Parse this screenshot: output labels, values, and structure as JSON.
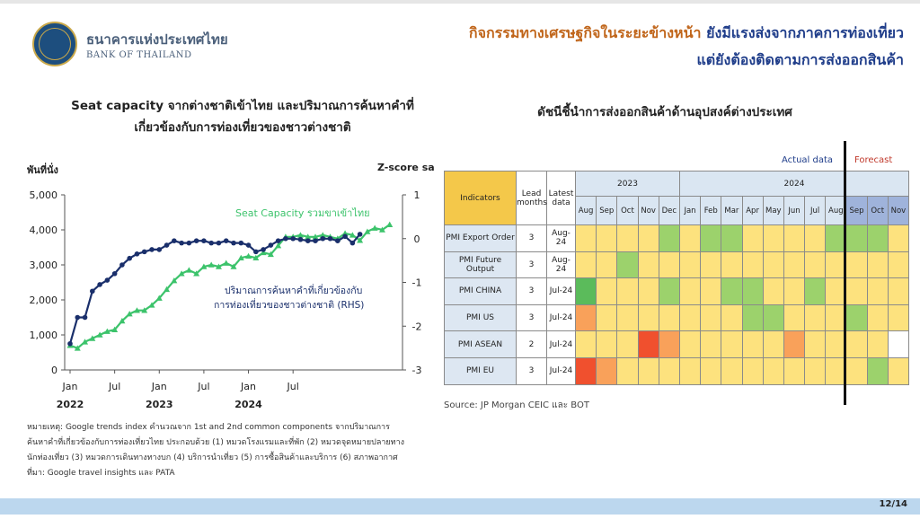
{
  "header": {
    "bank_th": "ธนาคารแห่งประเทศไทย",
    "bank_en": "BANK OF THAILAND",
    "headline_part1": "กิจกรรมทางเศรษฐกิจในระยะข้างหน้า",
    "headline_part2": " ยังมีแรงส่งจากภาคการท่องเที่ยว",
    "headline_line2": "แต่ยังต้องติดตามการส่งออกสินค้า"
  },
  "left_title_line1": "Seat capacity จากต่างชาติเข้าไทย และปริมาณการค้นหาคำที่",
  "left_title_line2": "เกี่ยวข้องกับการท่องเที่ยวของชาวต่างชาติ",
  "right_title": "ดัชนีชี้นำการส่งออกสินค้าด้านอุปสงค์ต่างประเทศ",
  "chart_data": {
    "type": "line",
    "ylabel": "พันที่นั่ง",
    "y2label": "Z-score sa",
    "ylim": [
      0,
      5000
    ],
    "y2lim": [
      -3,
      1
    ],
    "yticks": [
      "0",
      "1,000",
      "2,000",
      "3,000",
      "4,000",
      "5,000"
    ],
    "y2ticks": [
      "-3",
      "-2",
      "-1",
      "0",
      "1"
    ],
    "xticks": [
      "Jan",
      "Jul",
      "Jan",
      "Jul",
      "Jan",
      "Jul"
    ],
    "xyears": [
      "2022",
      "2023",
      "2024"
    ],
    "annotations": [
      "Seat Capacity รวมขาเข้าไทย",
      "ปริมาณการค้นหาคำที่เกี่ยวข้องกับ",
      "การท่องเที่ยวของชาวต่างชาติ (RHS)"
    ],
    "series": [
      {
        "name": "Seat Capacity รวมขาเข้าไทย",
        "axis": "left",
        "color": "#3cc36b",
        "values": [
          700,
          620,
          800,
          900,
          1000,
          1100,
          1150,
          1400,
          1600,
          1700,
          1700,
          1850,
          2050,
          2300,
          2550,
          2750,
          2850,
          2750,
          2950,
          3000,
          2950,
          3050,
          2950,
          3200,
          3250,
          3200,
          3350,
          3300,
          3550,
          3800,
          3800,
          3850,
          3800,
          3800,
          3850,
          3800,
          3750,
          3900,
          3850,
          3700,
          3950,
          4050,
          4000,
          4150
        ]
      },
      {
        "name": "ปริมาณการค้นหาคำที่เกี่ยวข้องกับการท่องเที่ยวของชาวต่างชาติ (RHS)",
        "axis": "right",
        "color": "#1a2f6b",
        "values": [
          -2.4,
          -1.8,
          -1.8,
          -1.2,
          -1.05,
          -0.95,
          -0.8,
          -0.6,
          -0.45,
          -0.35,
          -0.3,
          -0.25,
          -0.25,
          -0.15,
          -0.05,
          -0.1,
          -0.1,
          -0.05,
          -0.05,
          -0.1,
          -0.1,
          -0.05,
          -0.1,
          -0.1,
          -0.15,
          -0.3,
          -0.25,
          -0.15,
          -0.05,
          0.0,
          0.0,
          -0.02,
          -0.05,
          -0.05,
          0.0,
          0.0,
          -0.05,
          0.05,
          -0.1,
          0.1
        ]
      }
    ]
  },
  "heatmap": {
    "head_indicators": "Indicators",
    "head_lead": "Lead months",
    "head_latest": "Latest data",
    "year1": "2023",
    "year2": "2024",
    "months": [
      "Aug",
      "Sep",
      "Oct",
      "Nov",
      "Dec",
      "Jan",
      "Feb",
      "Mar",
      "Apr",
      "May",
      "Jun",
      "Jul",
      "Aug",
      "Sep",
      "Oct",
      "Nov"
    ],
    "forecast_from": 13,
    "actual_label": "Actual data",
    "forecast_label": "Forecast",
    "colors": {
      "G": "#9cd26c",
      "Y": "#fde27e",
      "O": "#f9a15a",
      "R": "#f0502e",
      "DG": "#5bbb5b",
      "W": "#ffffff"
    },
    "rows": [
      {
        "name": "PMI Export Order",
        "lead": "3",
        "latest": "Aug-24",
        "cells": [
          "Y",
          "Y",
          "Y",
          "Y",
          "G",
          "Y",
          "G",
          "G",
          "Y",
          "Y",
          "Y",
          "Y",
          "G",
          "G",
          "G",
          "Y"
        ]
      },
      {
        "name": "PMI Future Output",
        "lead": "3",
        "latest": "Aug-24",
        "cells": [
          "Y",
          "Y",
          "G",
          "Y",
          "Y",
          "Y",
          "Y",
          "Y",
          "Y",
          "Y",
          "Y",
          "Y",
          "Y",
          "Y",
          "Y",
          "Y"
        ]
      },
      {
        "name": "PMI CHINA",
        "lead": "3",
        "latest": "Jul-24",
        "cells": [
          "DG",
          "Y",
          "Y",
          "Y",
          "G",
          "Y",
          "Y",
          "G",
          "G",
          "Y",
          "Y",
          "G",
          "Y",
          "Y",
          "Y",
          "Y"
        ]
      },
      {
        "name": "PMI US",
        "lead": "3",
        "latest": "Jul-24",
        "cells": [
          "O",
          "Y",
          "Y",
          "Y",
          "Y",
          "Y",
          "Y",
          "Y",
          "G",
          "G",
          "Y",
          "Y",
          "Y",
          "G",
          "Y",
          "Y"
        ]
      },
      {
        "name": "PMI ASEAN",
        "lead": "2",
        "latest": "Jul-24",
        "cells": [
          "Y",
          "Y",
          "Y",
          "R",
          "O",
          "Y",
          "Y",
          "Y",
          "Y",
          "Y",
          "O",
          "Y",
          "Y",
          "Y",
          "Y",
          "W"
        ]
      },
      {
        "name": "PMI EU",
        "lead": "3",
        "latest": "Jul-24",
        "cells": [
          "R",
          "O",
          "Y",
          "Y",
          "Y",
          "Y",
          "Y",
          "Y",
          "Y",
          "Y",
          "Y",
          "Y",
          "Y",
          "Y",
          "G",
          "Y"
        ]
      }
    ]
  },
  "source": "Source: JP Morgan CEIC และ BOT",
  "note": [
    "หมายเหตุ: Google trends index คำนวณจาก 1st and 2nd  common components จากปริมาณการ",
    "ค้นหาคำที่เกี่ยวข้องกับการท่องเที่ยวไทย ประกอบด้วย (1) หมวดโรงแรมและที่พัก (2) หมวดจุดหมายปลายทาง",
    "นักท่องเที่ยว (3) หมวดการเดินทางทางบก (4) บริการนำเที่ยว (5) การซื้อสินค้าและบริการ (6) สภาพอากาศ",
    "ที่มา: Google travel insights และ PATA"
  ],
  "page_number": "12/14"
}
